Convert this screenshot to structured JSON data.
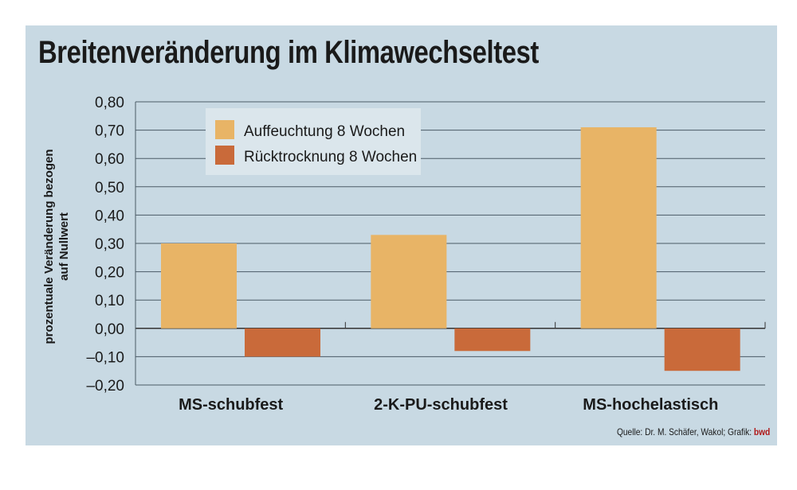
{
  "chart_data": {
    "type": "bar",
    "title": "Breitenveränderung im Klimawechseltest",
    "ylabel": "prozentuale Veränderung bezogen auf Nullwert",
    "ylabel_lines": [
      "prozentuale Veränderung bezogen",
      "auf Nullwert"
    ],
    "xlabel": "",
    "ylim": [
      -0.2,
      0.8
    ],
    "yticks": [
      "0,80",
      "0,70",
      "0,60",
      "0,50",
      "0,40",
      "0,30",
      "0,20",
      "0,10",
      "0,00",
      "–0,10",
      "–0,20"
    ],
    "categories": [
      "MS-schubfest",
      "2-K-PU-schubfest",
      "MS-hochelastisch"
    ],
    "series": [
      {
        "name": "Auffeuchtung 8 Wochen",
        "values": [
          0.3,
          0.33,
          0.71
        ],
        "color": "#e8b466"
      },
      {
        "name": "Rücktrocknung 8 Wochen",
        "values": [
          -0.1,
          -0.08,
          -0.15
        ],
        "color": "#c96a3a"
      }
    ],
    "grid": true,
    "legend": "top-left",
    "background": "#c8d9e3"
  },
  "source": {
    "text": "Quelle: Dr. M. Schäfer, Wakol; Grafik: ",
    "brand": "bwd"
  }
}
